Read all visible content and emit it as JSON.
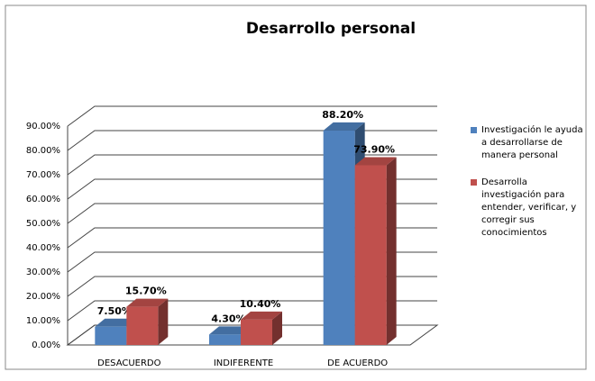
{
  "chart_data": {
    "type": "bar3d",
    "title": "Desarrollo personal",
    "categories": [
      "DESACUERDO",
      "INDIFERENTE",
      "DE ACUERDO"
    ],
    "series": [
      {
        "name": "Investigación le ayuda a desarrollarse de manera personal",
        "color": "#4f81bd",
        "values": [
          7.5,
          4.3,
          88.2
        ],
        "value_labels": [
          "7.50%",
          "4.30%",
          "88.20%"
        ]
      },
      {
        "name": "Desarrolla investigación para entender, verificar, y corregir sus conocimientos",
        "color": "#c0504d",
        "values": [
          15.7,
          10.4,
          73.9
        ],
        "value_labels": [
          "15.70%",
          "10.40%",
          "73.90%"
        ]
      }
    ],
    "ylim": [
      0,
      90
    ],
    "yticks": [
      {
        "value": 0,
        "label": "0.00%"
      },
      {
        "value": 10,
        "label": "10.00%"
      },
      {
        "value": 20,
        "label": "20.00%"
      },
      {
        "value": 30,
        "label": "30.00%"
      },
      {
        "value": 40,
        "label": "40.00%"
      },
      {
        "value": 50,
        "label": "50.00%"
      },
      {
        "value": 60,
        "label": "60.00%"
      },
      {
        "value": 70,
        "label": "70.00%"
      },
      {
        "value": 80,
        "label": "80.00%"
      },
      {
        "value": 90,
        "label": "90.00%"
      }
    ],
    "grid": true,
    "legend": "right"
  }
}
